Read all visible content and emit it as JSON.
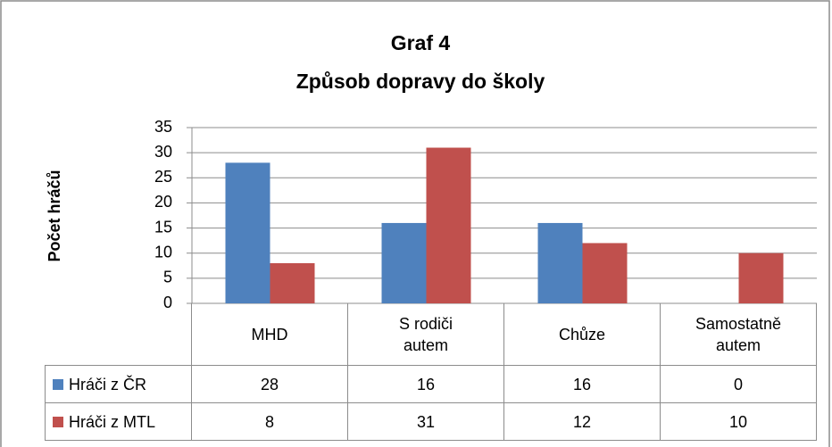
{
  "chart_data": {
    "type": "bar",
    "title": "Graf 4",
    "subtitle": "Způsob dopravy do školy",
    "y_label": "Počet hráčů",
    "categories": [
      "MHD",
      "S rodiči autem",
      "Chůze",
      "Samostatně autem"
    ],
    "series": [
      {
        "name": "Hráči z ČR",
        "color": "#4f81bd",
        "values": [
          28,
          16,
          16,
          0
        ]
      },
      {
        "name": "Hráči z MTL",
        "color": "#c0504d",
        "values": [
          8,
          31,
          12,
          10
        ]
      }
    ],
    "ylim": [
      0,
      35
    ],
    "yticks": [
      0,
      5,
      10,
      15,
      20,
      25,
      30,
      35
    ],
    "grid": true,
    "data_table": true
  }
}
